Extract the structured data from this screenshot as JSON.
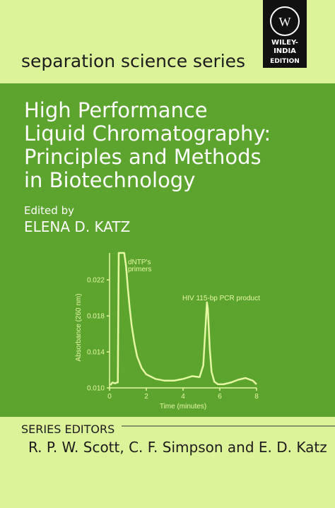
{
  "publisher": {
    "logo": [
      "WILEY-",
      "INDIA",
      "EDITION"
    ]
  },
  "series": "separation science series",
  "title": [
    "High Performance",
    "Liquid Chromatography:",
    "Principles and Methods",
    "in Biotechnology"
  ],
  "editor_label": "Edited by",
  "editor": "ELENA D. KATZ",
  "chart": {
    "type": "line",
    "x_label": "Time (minutes)",
    "y_label": "Absorbance (260 nm)",
    "annotations": [
      "dNTP's",
      "primers",
      "HIV 115-bp PCR product"
    ],
    "x": [
      0.05,
      0.15,
      0.3,
      0.4,
      0.45,
      0.5,
      0.8,
      0.9,
      1.0,
      1.1,
      1.2,
      1.35,
      1.5,
      1.75,
      2.0,
      2.5,
      3.0,
      3.5,
      4.0,
      4.5,
      4.9,
      5.1,
      5.2,
      5.3,
      5.35,
      5.45,
      5.55,
      5.7,
      5.9,
      6.2,
      6.6,
      7.0,
      7.4,
      7.8,
      8.0
    ],
    "values": [
      0.0103,
      0.0106,
      0.0105,
      0.0106,
      0.0106,
      0.025,
      0.025,
      0.0235,
      0.021,
      0.0188,
      0.017,
      0.015,
      0.0135,
      0.0122,
      0.0115,
      0.011,
      0.0108,
      0.0108,
      0.011,
      0.0113,
      0.0112,
      0.0125,
      0.016,
      0.0195,
      0.0188,
      0.0145,
      0.0118,
      0.0107,
      0.0104,
      0.0104,
      0.0106,
      0.0109,
      0.0111,
      0.0108,
      0.0104
    ],
    "xlim": [
      0,
      8
    ],
    "ylim": [
      0.01,
      0.025
    ],
    "xticks": [
      0,
      2,
      4,
      6,
      8
    ],
    "yticks": [
      {
        "value": 0.01,
        "label": "0.010"
      },
      0.014,
      0.018,
      0.022
    ]
  },
  "series_editors": {
    "label": "SERIES EDITORS",
    "names": "R. P. W. Scott, C. F. Simpson and E. D. Katz"
  }
}
